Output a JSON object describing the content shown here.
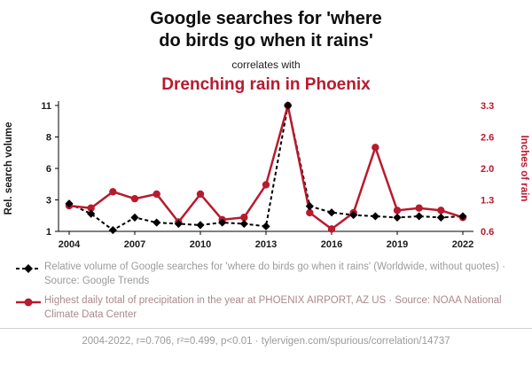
{
  "accent_color": "#b81a2e",
  "header": {
    "title_lines": [
      "Google searches for 'where",
      "do birds go when it rains'"
    ],
    "connector": "correlates with",
    "secondary_title": "Drenching rain in Phoenix"
  },
  "chart_data": {
    "type": "line",
    "x": [
      2004,
      2005,
      2006,
      2007,
      2008,
      2009,
      2010,
      2011,
      2012,
      2013,
      2014,
      2015,
      2016,
      2017,
      2018,
      2019,
      2020,
      2021,
      2022
    ],
    "x_tick_labels": [
      "2004",
      "2007",
      "2010",
      "2013",
      "2016",
      "2019",
      "2022"
    ],
    "left_axis": {
      "label": "Rel. search volume",
      "tick_labels": [
        "1",
        "3",
        "6",
        "8",
        "11"
      ],
      "range": [
        1,
        11
      ]
    },
    "right_axis": {
      "label": "Inches of rain",
      "tick_labels": [
        "0.6",
        "1.3",
        "2.0",
        "2.6",
        "3.3"
      ],
      "range": [
        0.6,
        3.3
      ],
      "color": "#b81a2e"
    },
    "grid": false,
    "legend_position": "below",
    "series": [
      {
        "name": "google-search-volume",
        "axis": "left",
        "color": "#000000",
        "marker": "diamond",
        "line_style": "dashed",
        "values": [
          3.2,
          2.4,
          1.1,
          2.1,
          1.7,
          1.6,
          1.5,
          1.7,
          1.6,
          1.4,
          11,
          3.0,
          2.5,
          2.3,
          2.2,
          2.1,
          2.2,
          2.1,
          2.2
        ]
      },
      {
        "name": "phoenix-precipitation",
        "axis": "right",
        "color": "#b81a2e",
        "marker": "circle",
        "line_style": "solid",
        "values": [
          1.15,
          1.1,
          1.45,
          1.3,
          1.4,
          0.8,
          1.4,
          0.85,
          0.9,
          1.6,
          3.3,
          1.0,
          0.65,
          1.0,
          2.4,
          1.05,
          1.1,
          1.05,
          0.9
        ]
      }
    ]
  },
  "legend": {
    "items": [
      {
        "text": "Relative volume of Google searches for 'where do birds go when it rains' (Worldwide, without quotes) · Source: Google Trends"
      },
      {
        "text": "Highest daily total of precipitation in the year at PHOENIX AIRPORT, AZ US · Source: NOAA National Climate Data Center"
      }
    ]
  },
  "footer": {
    "text": "2004-2022, r=0.706, r²=0.499, p<0.01 · tylervigen.com/spurious/correlation/14737"
  }
}
